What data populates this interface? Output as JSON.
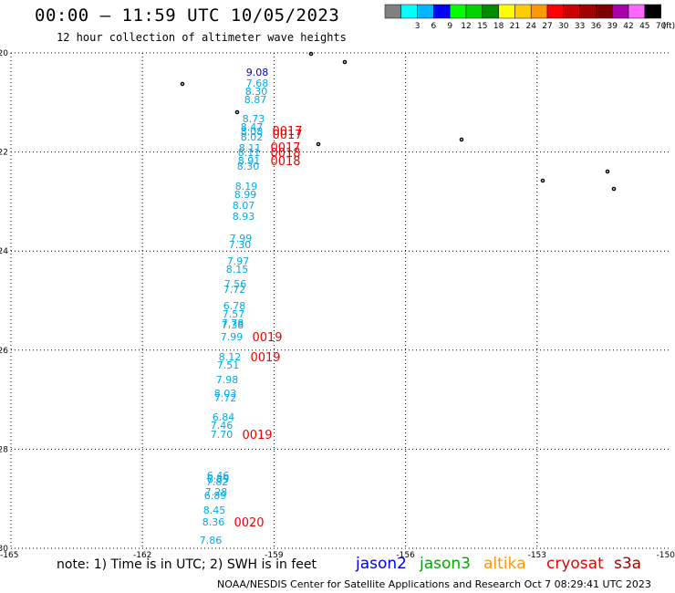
{
  "header": {
    "title": "00:00 – 11:59 UTC 10/05/2023",
    "subtitle": "12 hour collection of altimeter wave heights"
  },
  "legend": {
    "unit": "(ft)",
    "items": [
      {
        "label": "",
        "color": "#808080"
      },
      {
        "label": "3",
        "color": "#00ffff"
      },
      {
        "label": "6",
        "color": "#00b4ff"
      },
      {
        "label": "9",
        "color": "#0000ff"
      },
      {
        "label": "12",
        "color": "#00ff00"
      },
      {
        "label": "15",
        "color": "#00d200"
      },
      {
        "label": "18",
        "color": "#008c00"
      },
      {
        "label": "21",
        "color": "#ffff00"
      },
      {
        "label": "24",
        "color": "#ffcc00"
      },
      {
        "label": "27",
        "color": "#ff9900"
      },
      {
        "label": "30",
        "color": "#ff0000"
      },
      {
        "label": "33",
        "color": "#cc0000"
      },
      {
        "label": "36",
        "color": "#a00000"
      },
      {
        "label": "39",
        "color": "#800000"
      },
      {
        "label": "42",
        "color": "#aa00aa"
      },
      {
        "label": "45",
        "color": "#ff66ff"
      },
      {
        "label": "70",
        "color": "#000000"
      }
    ]
  },
  "map": {
    "lat_range": [
      -30,
      -20
    ],
    "lon_range": [
      -165,
      -150
    ],
    "lat_ticks": [
      "-20",
      "-22",
      "-24",
      "-26",
      "-28",
      "-30"
    ],
    "lon_ticks": [
      "-165",
      "-162",
      "-159",
      "-156",
      "-153",
      "-150"
    ]
  },
  "measurements": [
    {
      "text": "9.08",
      "color": "#0000cc"
    },
    {
      "text": "7.68",
      "color": "#00aaee"
    },
    {
      "text": "8.30",
      "color": "#00aaee"
    },
    {
      "text": "8.87",
      "color": "#00aaee"
    },
    {
      "text": "8.73",
      "color": "#00aaee"
    },
    {
      "text": "8.47",
      "color": "#00aaee"
    },
    {
      "text": "8.08",
      "color": "#00aaee"
    },
    {
      "text": "8.02",
      "color": "#00aaee"
    },
    {
      "text": "8.11",
      "color": "#00aaee"
    },
    {
      "text": "8.11",
      "color": "#00aaee"
    },
    {
      "text": "8.91",
      "color": "#00aaee"
    },
    {
      "text": "8.30",
      "color": "#00aaee"
    },
    {
      "text": "8.19",
      "color": "#00aaee"
    },
    {
      "text": "8.99",
      "color": "#00aaee"
    },
    {
      "text": "8.07",
      "color": "#00aaee"
    },
    {
      "text": "8.93",
      "color": "#00aaee"
    },
    {
      "text": "7.99",
      "color": "#00aaee"
    },
    {
      "text": "7.30",
      "color": "#00aaee"
    },
    {
      "text": "7.97",
      "color": "#00aaee"
    },
    {
      "text": "8.15",
      "color": "#00aaee"
    },
    {
      "text": "7.56",
      "color": "#00aaee"
    },
    {
      "text": "7.72",
      "color": "#00aaee"
    },
    {
      "text": "6.78",
      "color": "#00aaee"
    },
    {
      "text": "7.57",
      "color": "#00aaee"
    },
    {
      "text": "7.78",
      "color": "#00aaee"
    },
    {
      "text": "7.38",
      "color": "#00aaee"
    },
    {
      "text": "7.99",
      "color": "#00aaee"
    },
    {
      "text": "8.12",
      "color": "#00aaee"
    },
    {
      "text": "7.51",
      "color": "#00aaee"
    },
    {
      "text": "7.98",
      "color": "#00aaee"
    },
    {
      "text": "8.03",
      "color": "#00aaee"
    },
    {
      "text": "7.72",
      "color": "#00aaee"
    },
    {
      "text": "6.84",
      "color": "#00aaee"
    },
    {
      "text": "7.46",
      "color": "#00aaee"
    },
    {
      "text": "7.70",
      "color": "#00aaee"
    },
    {
      "text": "6.46",
      "color": "#00aaee"
    },
    {
      "text": "6.89",
      "color": "#00aaee"
    },
    {
      "text": "7.82",
      "color": "#00aaee"
    },
    {
      "text": "7.28",
      "color": "#00aaee"
    },
    {
      "text": "6.89",
      "color": "#00aaee"
    },
    {
      "text": "8.45",
      "color": "#00aaee"
    },
    {
      "text": "8.36",
      "color": "#00aaee"
    },
    {
      "text": "7.86",
      "color": "#00aaee"
    }
  ],
  "times": [
    {
      "text": "0017",
      "color": "#ee0000"
    },
    {
      "text": "0017",
      "color": "#ee0000"
    },
    {
      "text": "0017",
      "color": "#ee0000"
    },
    {
      "text": "0018",
      "color": "#ee0000"
    },
    {
      "text": "0018",
      "color": "#ee0000"
    },
    {
      "text": "0019",
      "color": "#ee0000"
    },
    {
      "text": "0019",
      "color": "#ee0000"
    },
    {
      "text": "0019",
      "color": "#ee0000"
    },
    {
      "text": "0020",
      "color": "#ee0000"
    }
  ],
  "footer": {
    "note": "note: 1) Time is in UTC; 2) SWH is in feet",
    "satellites": [
      {
        "name": "jason2",
        "color": "#0000ee"
      },
      {
        "name": "jason3",
        "color": "#00aa00"
      },
      {
        "name": "altika",
        "color": "#ff9900"
      },
      {
        "name": "cryosat",
        "color": "#ee0000"
      },
      {
        "name": "s3a",
        "color": "#aa0000"
      }
    ],
    "credit": "NOAA/NESDIS Center for Satellite Applications and Research    Oct  7 08:29:41 UTC 2023"
  }
}
